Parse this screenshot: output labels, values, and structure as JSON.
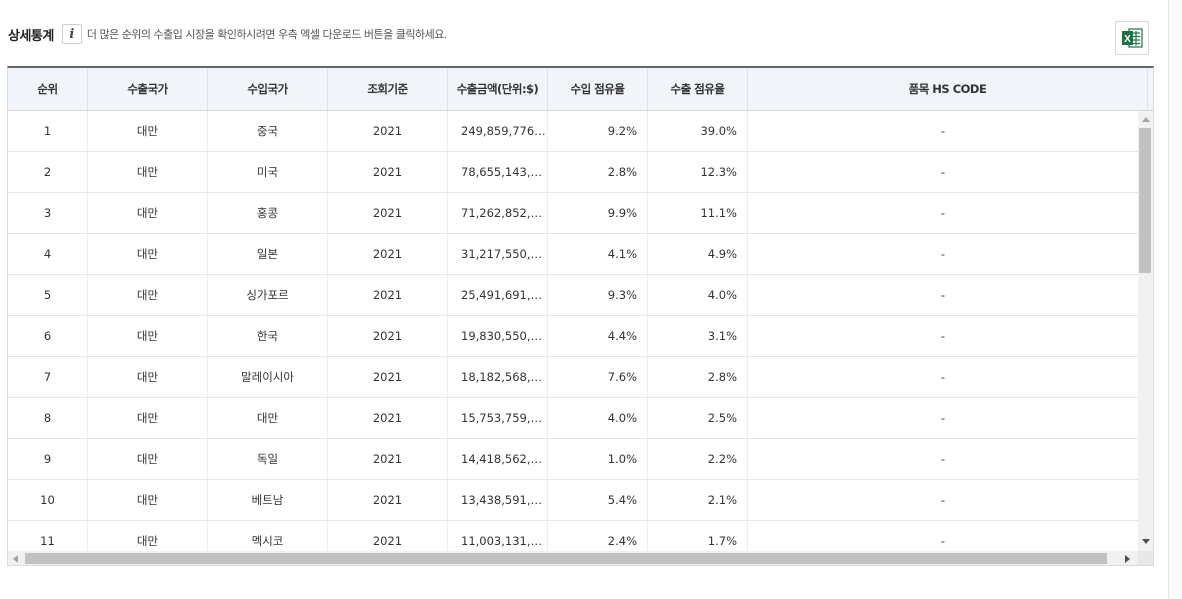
{
  "header": {
    "title": "상세통계",
    "info_icon": "i",
    "notice": "더 많은 순위의 수출입 시장을 확인하시려면 우측 엑셀 다운로드 버튼을 클릭하세요.",
    "excel_icon": "excel-download-icon",
    "excel_letter": "X"
  },
  "table": {
    "columns": [
      "순위",
      "수출국가",
      "수입국가",
      "조회기준",
      "수출금액(단위:$)",
      "수입 점유율",
      "수출 점유율",
      "품목 HS CODE"
    ],
    "rows": [
      [
        "1",
        "대만",
        "중국",
        "2021",
        "249,859,776…",
        "9.2%",
        "39.0%",
        "-"
      ],
      [
        "2",
        "대만",
        "미국",
        "2021",
        "78,655,143,…",
        "2.8%",
        "12.3%",
        "-"
      ],
      [
        "3",
        "대만",
        "홍콩",
        "2021",
        "71,262,852,…",
        "9.9%",
        "11.1%",
        "-"
      ],
      [
        "4",
        "대만",
        "일본",
        "2021",
        "31,217,550,…",
        "4.1%",
        "4.9%",
        "-"
      ],
      [
        "5",
        "대만",
        "싱가포르",
        "2021",
        "25,491,691,…",
        "9.3%",
        "4.0%",
        "-"
      ],
      [
        "6",
        "대만",
        "한국",
        "2021",
        "19,830,550,…",
        "4.4%",
        "3.1%",
        "-"
      ],
      [
        "7",
        "대만",
        "말레이시아",
        "2021",
        "18,182,568,…",
        "7.6%",
        "2.8%",
        "-"
      ],
      [
        "8",
        "대만",
        "대만",
        "2021",
        "15,753,759,…",
        "4.0%",
        "2.5%",
        "-"
      ],
      [
        "9",
        "대만",
        "독일",
        "2021",
        "14,418,562,…",
        "1.0%",
        "2.2%",
        "-"
      ],
      [
        "10",
        "대만",
        "베트남",
        "2021",
        "13,438,591,…",
        "5.4%",
        "2.1%",
        "-"
      ],
      [
        "11",
        "대만",
        "멕시코",
        "2021",
        "11,003,131,…",
        "2.4%",
        "1.7%",
        "-"
      ]
    ]
  },
  "colors": {
    "header_bg": "#f1f4f8",
    "excel_green": "#1f7244",
    "top_border": "#666666"
  }
}
